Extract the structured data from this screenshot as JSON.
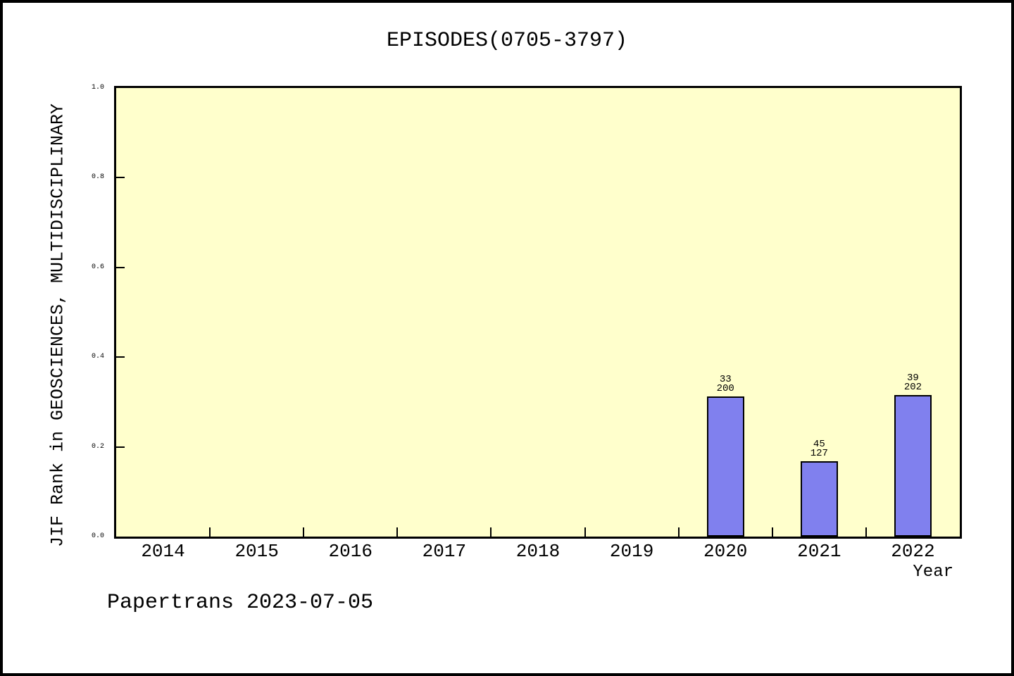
{
  "page": {
    "background": "#ffffff",
    "frame_color": "#000000"
  },
  "footer": {
    "text": "Papertrans 2023-07-05"
  },
  "chart_data": {
    "type": "bar",
    "title": "EPISODES(0705-3797)",
    "xlabel": "Year",
    "ylabel": "JIF Rank in GEOSCIENCES, MULTIDISCIPLINARY",
    "categories": [
      "2014",
      "2015",
      "2016",
      "2017",
      "2018",
      "2019",
      "2020",
      "2021",
      "2022"
    ],
    "values": [
      null,
      null,
      null,
      null,
      null,
      null,
      0.313,
      0.168,
      0.316
    ],
    "bar_annotations": [
      {
        "category": "2020",
        "lines": [
          "33",
          "200"
        ]
      },
      {
        "category": "2021",
        "lines": [
          "45",
          "127"
        ]
      },
      {
        "category": "2022",
        "lines": [
          "39",
          "202"
        ]
      }
    ],
    "ylim": [
      0.0,
      1.0
    ],
    "y_tick_labels": [
      "0.0",
      "0.2",
      "0.4",
      "0.6",
      "0.8",
      "1.0"
    ],
    "xlim_note": "x axis spans 2013.5 to 2022.5, tick marks at year boundaries",
    "grid": false,
    "legend": false,
    "plot_background": "#ffffcc",
    "bar_color": "#8080ee",
    "bar_border_color": "#000000",
    "axis_color": "#000000",
    "text_color": "#000000"
  }
}
